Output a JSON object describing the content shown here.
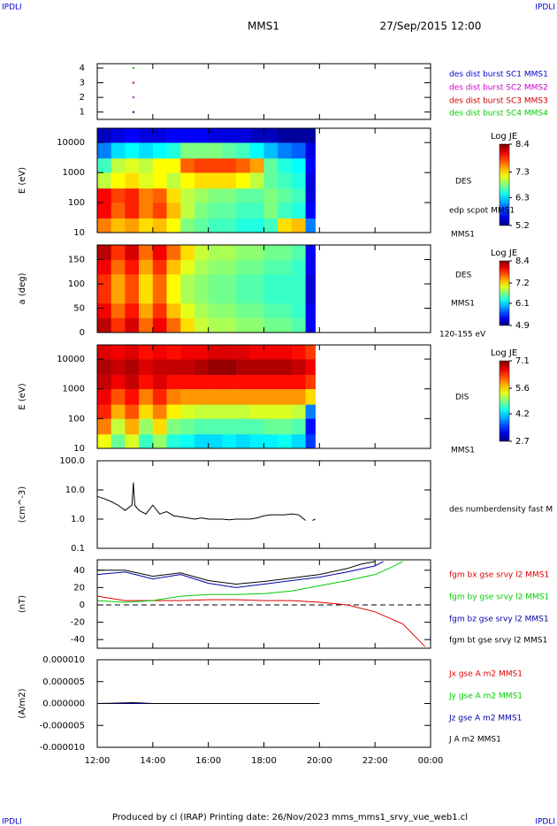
{
  "header": {
    "logo": "IPDLI",
    "mission": "MMS1",
    "date": "27/Sep/2015 12:00"
  },
  "footer": "Produced by cl (IRAP)   Printing date: 26/Nov/2023   mms_mms1_srvy_vue_web1.cl",
  "chart_data": [
    {
      "type": "scatter",
      "xlim": [
        12,
        24
      ],
      "ylim": [
        0.5,
        4.3
      ],
      "yticks": [
        1,
        2,
        3,
        4
      ],
      "series": [
        {
          "name": "des dist burst SC1 MMS1",
          "color": "#0000cc",
          "x": [
            13.3
          ],
          "values": [
            1
          ]
        },
        {
          "name": "des dist burst SC2 MMS2",
          "color": "#cc00cc",
          "x": [
            13.3
          ],
          "values": [
            2
          ]
        },
        {
          "name": "des dist burst SC3 MMS3",
          "color": "#cc0000",
          "x": [
            13.3
          ],
          "values": [
            3
          ]
        },
        {
          "name": "des dist burst SC4 MMS4",
          "color": "#00cc00",
          "x": [
            13.3
          ],
          "values": [
            4
          ]
        }
      ]
    },
    {
      "type": "heatmap",
      "ylabel": "E (eV)",
      "xlim": [
        12,
        24
      ],
      "ylim": [
        10,
        30000
      ],
      "ylog": true,
      "yticks": [
        10,
        100,
        1000,
        10000
      ],
      "colorbar_title": "Log JE",
      "clim": [
        5.2,
        8.4
      ],
      "cticks": [
        5.2,
        6.3,
        7.3,
        8.4
      ],
      "annotations": [
        "DES",
        "edp scpot MMS1",
        "MMS1"
      ],
      "x_edges": [
        12,
        12.5,
        13,
        13.5,
        14,
        14.5,
        15,
        15.5,
        16,
        16.5,
        17,
        17.5,
        18,
        18.5,
        19,
        19.5,
        19.85
      ],
      "y_edges": [
        10,
        30,
        100,
        300,
        1000,
        3000,
        10000,
        30000
      ],
      "z": [
        [
          7.6,
          7.4,
          7.5,
          7.3,
          7.4,
          7.2,
          6.8,
          6.7,
          6.6,
          6.6,
          6.5,
          6.5,
          6.6,
          7.3,
          7.4,
          6.0
        ],
        [
          8.0,
          7.7,
          7.9,
          7.6,
          7.8,
          7.4,
          7.0,
          6.8,
          6.7,
          6.7,
          6.6,
          6.6,
          6.8,
          6.6,
          6.5,
          5.6
        ],
        [
          8.0,
          7.8,
          7.9,
          7.6,
          7.7,
          7.3,
          7.0,
          6.9,
          6.8,
          6.8,
          6.7,
          6.7,
          6.8,
          6.7,
          6.6,
          5.5
        ],
        [
          7.0,
          7.2,
          7.3,
          7.1,
          7.2,
          7.0,
          7.2,
          7.3,
          7.3,
          7.3,
          7.2,
          7.0,
          6.7,
          6.6,
          6.5,
          5.5
        ],
        [
          6.6,
          7.0,
          7.1,
          7.0,
          7.2,
          7.2,
          7.7,
          7.8,
          7.8,
          7.8,
          7.7,
          7.5,
          6.7,
          6.5,
          6.4,
          5.6
        ],
        [
          6.0,
          6.3,
          6.4,
          6.3,
          6.4,
          6.5,
          6.8,
          6.8,
          6.8,
          6.7,
          6.6,
          6.4,
          6.2,
          6.0,
          5.9,
          5.5
        ],
        [
          5.4,
          5.5,
          5.6,
          5.5,
          5.5,
          5.6,
          5.6,
          5.6,
          5.5,
          5.5,
          5.5,
          5.4,
          5.4,
          5.3,
          5.3,
          5.3
        ]
      ]
    },
    {
      "type": "heatmap",
      "ylabel": "a (deg)",
      "xlim": [
        12,
        24
      ],
      "ylim": [
        0,
        180
      ],
      "yticks": [
        0,
        50,
        100,
        150
      ],
      "colorbar_title": "Log JE",
      "clim": [
        4.9,
        8.4
      ],
      "cticks": [
        4.9,
        6.1,
        7.2,
        8.4
      ],
      "annotations": [
        "DES",
        "MMS1",
        "120-155 eV"
      ],
      "x_edges": [
        12,
        12.5,
        13,
        13.5,
        14,
        14.5,
        15,
        15.5,
        16,
        16.5,
        17,
        17.5,
        18,
        18.5,
        19,
        19.5,
        19.85
      ],
      "y_edges": [
        0,
        30,
        60,
        90,
        120,
        150,
        180
      ],
      "z": [
        [
          8.2,
          7.8,
          8.1,
          7.6,
          8.0,
          7.6,
          7.2,
          6.9,
          6.8,
          6.8,
          6.7,
          6.7,
          6.6,
          6.6,
          6.5,
          5.3
        ],
        [
          8.0,
          7.6,
          7.9,
          7.4,
          7.8,
          7.3,
          7.0,
          6.8,
          6.7,
          6.7,
          6.6,
          6.6,
          6.5,
          6.5,
          6.4,
          5.3
        ],
        [
          7.8,
          7.4,
          7.7,
          7.2,
          7.6,
          7.1,
          6.8,
          6.7,
          6.6,
          6.6,
          6.5,
          6.5,
          6.4,
          6.4,
          6.4,
          5.2
        ],
        [
          7.8,
          7.4,
          7.7,
          7.2,
          7.6,
          7.1,
          6.8,
          6.7,
          6.6,
          6.6,
          6.5,
          6.5,
          6.4,
          6.4,
          6.4,
          5.2
        ],
        [
          8.0,
          7.6,
          7.9,
          7.4,
          7.8,
          7.3,
          7.0,
          6.8,
          6.7,
          6.7,
          6.6,
          6.6,
          6.5,
          6.5,
          6.4,
          5.3
        ],
        [
          8.2,
          7.8,
          8.1,
          7.6,
          8.0,
          7.6,
          7.2,
          6.9,
          6.8,
          6.8,
          6.7,
          6.7,
          6.6,
          6.6,
          6.5,
          5.3
        ]
      ]
    },
    {
      "type": "heatmap",
      "ylabel": "E (eV)",
      "xlim": [
        12,
        24
      ],
      "ylim": [
        10,
        30000
      ],
      "ylog": true,
      "yticks": [
        10,
        100,
        1000,
        10000
      ],
      "colorbar_title": "Log JE",
      "clim": [
        2.7,
        7.1
      ],
      "cticks": [
        2.7,
        4.2,
        5.6,
        7.1
      ],
      "annotations": [
        "DIS",
        "MMS1"
      ],
      "x_edges": [
        12,
        12.5,
        13,
        13.5,
        14,
        14.5,
        15,
        15.5,
        16,
        16.5,
        17,
        17.5,
        18,
        18.5,
        19,
        19.5,
        19.85
      ],
      "y_edges": [
        10,
        30,
        100,
        300,
        1000,
        3000,
        10000,
        30000
      ],
      "z": [
        [
          5.4,
          4.8,
          5.3,
          4.6,
          5.0,
          4.5,
          4.4,
          4.2,
          4.2,
          4.3,
          4.2,
          4.3,
          4.3,
          4.4,
          4.2,
          3.5
        ],
        [
          6.0,
          5.2,
          5.8,
          5.0,
          5.6,
          4.9,
          4.8,
          4.7,
          4.7,
          4.7,
          4.7,
          4.7,
          4.8,
          4.8,
          4.7,
          3.3
        ],
        [
          6.4,
          5.8,
          6.2,
          5.6,
          6.0,
          5.5,
          5.3,
          5.2,
          5.2,
          5.2,
          5.2,
          5.3,
          5.3,
          5.3,
          5.2,
          3.8
        ],
        [
          6.6,
          6.2,
          6.5,
          6.0,
          6.4,
          6.0,
          5.9,
          5.9,
          5.9,
          5.9,
          5.9,
          5.9,
          5.9,
          5.9,
          5.9,
          5.6
        ],
        [
          6.8,
          6.6,
          6.8,
          6.5,
          6.7,
          6.5,
          6.5,
          6.5,
          6.5,
          6.5,
          6.5,
          6.5,
          6.5,
          6.5,
          6.5,
          6.3
        ],
        [
          6.9,
          6.8,
          6.9,
          6.7,
          6.8,
          6.8,
          6.8,
          6.9,
          7.0,
          7.0,
          6.9,
          6.9,
          6.9,
          6.9,
          6.8,
          6.6
        ],
        [
          6.7,
          6.6,
          6.7,
          6.5,
          6.6,
          6.5,
          6.6,
          6.6,
          6.7,
          6.7,
          6.7,
          6.6,
          6.6,
          6.6,
          6.5,
          6.3
        ]
      ]
    },
    {
      "type": "line",
      "ylabel": "(cm^-3)",
      "xlim": [
        12,
        24
      ],
      "ylim": [
        0.1,
        100
      ],
      "ylog": true,
      "yticks": [
        {
          "value": 100,
          "label": "100.0"
        },
        {
          "value": 10,
          "label": "10.0"
        },
        {
          "value": 1,
          "label": "1.0"
        },
        0.1
      ],
      "annotations": [
        "des numberdensity fast M"
      ],
      "series": [
        {
          "color": "#000000",
          "x": [
            12,
            12.25,
            12.5,
            12.75,
            13,
            13.25,
            13.3,
            13.35,
            13.5,
            13.75,
            14,
            14.25,
            14.5,
            14.75,
            15,
            15.25,
            15.5,
            15.75,
            16,
            16.25,
            16.5,
            16.75,
            17,
            17.25,
            17.5,
            17.75,
            18,
            18.25,
            18.5,
            18.75,
            19,
            19.25,
            19.5,
            19.65,
            19.75,
            19.85
          ],
          "values": [
            6,
            5,
            4,
            3,
            2,
            3,
            18,
            3,
            2,
            1.5,
            3,
            1.5,
            1.8,
            1.3,
            1.2,
            1.1,
            1.0,
            1.1,
            1.0,
            1.0,
            1.0,
            0.95,
            1.0,
            1.0,
            1.0,
            1.1,
            1.3,
            1.4,
            1.4,
            1.4,
            1.5,
            1.4,
            0.9,
            null,
            0.9,
            1.0
          ]
        }
      ]
    },
    {
      "type": "line",
      "ylabel": "(nT)",
      "xlim": [
        12,
        24
      ],
      "ylim": [
        -50,
        52
      ],
      "yticks": [
        -40,
        -20,
        0,
        20,
        40
      ],
      "zero_line": true,
      "series": [
        {
          "name": "fgm bx gse srvy l2 MMS1",
          "color": "#dd0000",
          "x": [
            12,
            13,
            14,
            15,
            16,
            17,
            18,
            19,
            20,
            21,
            22,
            23,
            23.8
          ],
          "values": [
            10,
            5,
            5,
            5,
            6,
            6,
            5,
            5,
            3,
            0,
            -8,
            -22,
            -48
          ]
        },
        {
          "name": "fgm by gse srvy l2 MMS1",
          "color": "#00cc00",
          "x": [
            12,
            13,
            14,
            15,
            16,
            17,
            18,
            19,
            20,
            21,
            22,
            22.5,
            23
          ],
          "values": [
            5,
            3,
            5,
            10,
            12,
            12,
            13,
            16,
            22,
            28,
            35,
            42,
            50
          ]
        },
        {
          "name": "fgm bz gse srvy l2 MMS1",
          "color": "#0000aa",
          "x": [
            12,
            13,
            14,
            15,
            16,
            17,
            18,
            19,
            20,
            21,
            22,
            22.3
          ],
          "values": [
            35,
            38,
            30,
            35,
            25,
            20,
            24,
            28,
            32,
            38,
            45,
            50
          ]
        },
        {
          "name": "fgm bt gse srvy l2 MMS1",
          "color": "#000000",
          "x": [
            12,
            13,
            14,
            15,
            16,
            17,
            18,
            19,
            20,
            21,
            21.5,
            22
          ],
          "values": [
            40,
            40,
            33,
            37,
            28,
            24,
            27,
            31,
            35,
            42,
            47,
            50
          ]
        }
      ]
    },
    {
      "type": "line",
      "ylabel": "(A/m2)",
      "xlim": [
        12,
        24
      ],
      "ylim": [
        -1e-05,
        1e-05
      ],
      "yticks": [
        {
          "value": 1e-05,
          "label": "0.000010"
        },
        {
          "value": 5e-06,
          "label": "0.000005"
        },
        {
          "value": 0,
          "label": "0.000000"
        },
        {
          "value": -5e-06,
          "label": "-0.000005"
        },
        {
          "value": -1e-05,
          "label": "-0.000010"
        }
      ],
      "xticks": [
        {
          "value": 12,
          "label": "12:00"
        },
        {
          "value": 14,
          "label": "14:00"
        },
        {
          "value": 16,
          "label": "16:00"
        },
        {
          "value": 18,
          "label": "18:00"
        },
        {
          "value": 20,
          "label": "20:00"
        },
        {
          "value": 22,
          "label": "22:00"
        },
        {
          "value": 24,
          "label": "00:00"
        }
      ],
      "series": [
        {
          "name": "Jx gse A m2 MMS1",
          "color": "#dd0000",
          "x": [
            12,
            14,
            16,
            18,
            20
          ],
          "values": [
            0,
            0,
            0,
            0,
            0
          ]
        },
        {
          "name": "Jy gse A m2 MMS1",
          "color": "#00cc00",
          "x": [
            12,
            14,
            16,
            18,
            20
          ],
          "values": [
            0,
            0,
            0,
            0,
            0
          ]
        },
        {
          "name": "Jz gse A m2 MMS1",
          "color": "#0000aa",
          "x": [
            12,
            14,
            16,
            18,
            20
          ],
          "values": [
            0,
            0,
            0,
            0,
            0
          ]
        },
        {
          "name": "J A m2 MMS1",
          "color": "#000000",
          "x": [
            12,
            13.3,
            14,
            16,
            18,
            20
          ],
          "values": [
            0,
            2e-07,
            0,
            0,
            0,
            0
          ]
        }
      ]
    }
  ]
}
